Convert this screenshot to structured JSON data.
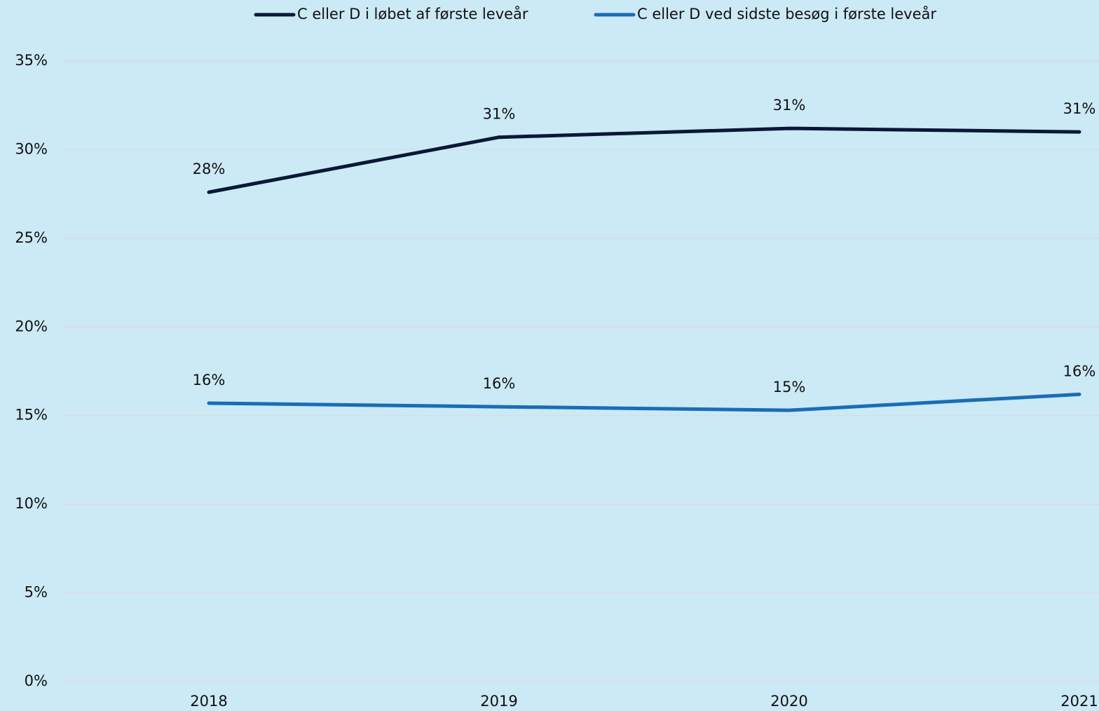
{
  "chart_data": {
    "type": "line",
    "categories": [
      "2018",
      "2019",
      "2020",
      "2021"
    ],
    "series": [
      {
        "name": "C eller D i løbet af første leveår",
        "color": "#0b1736",
        "values": [
          27.6,
          30.7,
          31.2,
          31.0
        ],
        "value_labels": [
          "28%",
          "31%",
          "31%",
          "31%"
        ]
      },
      {
        "name": "C eller D ved sidste besøg i første leveår",
        "color": "#1a6db5",
        "values": [
          15.7,
          15.5,
          15.3,
          16.2
        ],
        "value_labels": [
          "16%",
          "16%",
          "15%",
          "16%"
        ]
      }
    ],
    "ylim": [
      0,
      35
    ],
    "yticks": [
      {
        "value": 0,
        "label": "0%"
      },
      {
        "value": 5,
        "label": "5%"
      },
      {
        "value": 10,
        "label": "10%"
      },
      {
        "value": 15,
        "label": "15%"
      },
      {
        "value": 20,
        "label": "20%"
      },
      {
        "value": 25,
        "label": "25%"
      },
      {
        "value": 30,
        "label": "30%"
      },
      {
        "value": 35,
        "label": "35%"
      }
    ],
    "grid": true,
    "legend": "top"
  }
}
